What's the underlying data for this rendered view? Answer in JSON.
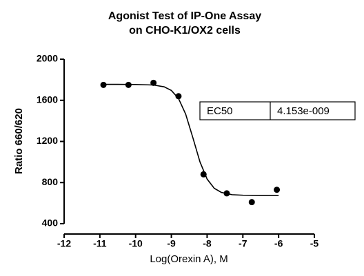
{
  "chart_data": {
    "type": "scatter",
    "title": [
      "Agonist Test of IP-One Assay",
      "on CHO-K1/OX2 cells"
    ],
    "x_label": "Log(Orexin A), M",
    "y_label": "Ratio 660/620",
    "x": [
      -10.9,
      -10.2,
      -9.5,
      -8.8,
      -8.1,
      -7.45,
      -6.75,
      -6.05
    ],
    "values": [
      1750,
      1750,
      1770,
      1640,
      880,
      695,
      610,
      730
    ],
    "color": "#000000",
    "curve": {
      "x": [
        -10.9,
        -10.5,
        -10,
        -9.5,
        -9.2,
        -9,
        -8.8,
        -8.6,
        -8.4,
        -8.2,
        -8,
        -7.8,
        -7.6,
        -7.3,
        -7,
        -6.5,
        -6
      ],
      "values": [
        1755,
        1755,
        1754,
        1749,
        1731,
        1696,
        1618,
        1466,
        1238,
        1001,
        834,
        744,
        704,
        682,
        677,
        675,
        675
      ]
    },
    "xlim": [
      -12,
      -5
    ],
    "xticks": [
      -12,
      -11,
      -10,
      -9,
      -8,
      -7,
      -6,
      -5
    ],
    "ylim": [
      400,
      2000
    ],
    "yticks": [
      400,
      800,
      1200,
      1600,
      2000
    ],
    "annotation": {
      "label": "EC50",
      "value": "4.153e-009"
    }
  }
}
